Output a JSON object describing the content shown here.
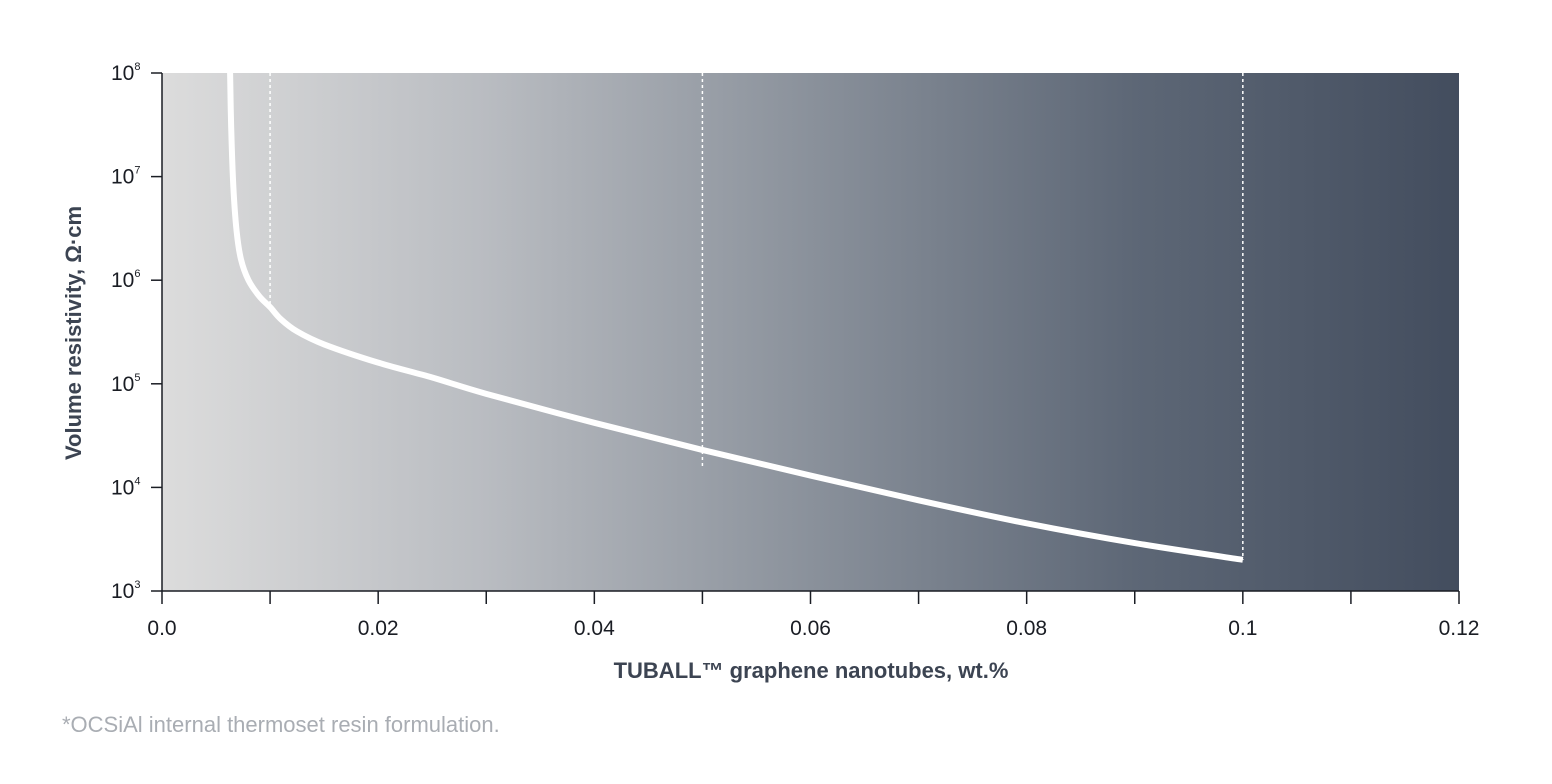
{
  "chart_data": {
    "type": "line",
    "xlabel": "TUBALL™ graphene nanotubes, wt.%",
    "ylabel": "Volume resistivity, Ω·cm",
    "x_scale": "linear",
    "y_scale": "log",
    "xlim": [
      0.0,
      0.12
    ],
    "ylim": [
      1000,
      100000000
    ],
    "x_ticks": [
      0.0,
      0.01,
      0.02,
      0.03,
      0.04,
      0.05,
      0.06,
      0.07,
      0.08,
      0.09,
      0.1,
      0.11,
      0.12
    ],
    "x_tick_labels": [
      {
        "value": 0.0,
        "label": "0.0"
      },
      {
        "value": 0.02,
        "label": "0.02"
      },
      {
        "value": 0.04,
        "label": "0.04"
      },
      {
        "value": 0.06,
        "label": "0.06"
      },
      {
        "value": 0.08,
        "label": "0.08"
      },
      {
        "value": 0.1,
        "label": "0.1"
      },
      {
        "value": 0.12,
        "label": "0.12"
      }
    ],
    "y_ticks": [
      {
        "value": 1000,
        "base": "10",
        "exp": "3"
      },
      {
        "value": 10000,
        "base": "10",
        "exp": "4"
      },
      {
        "value": 100000,
        "base": "10",
        "exp": "5"
      },
      {
        "value": 1000000,
        "base": "10",
        "exp": "6"
      },
      {
        "value": 10000000,
        "base": "10",
        "exp": "7"
      },
      {
        "value": 100000000,
        "base": "10",
        "exp": "8"
      }
    ],
    "series": [
      {
        "color": "#ffffff",
        "points": [
          [
            0.0063,
            100000000
          ],
          [
            0.0064,
            30000000
          ],
          [
            0.0066,
            8000000
          ],
          [
            0.0069,
            3000000
          ],
          [
            0.0073,
            1600000
          ],
          [
            0.008,
            1000000
          ],
          [
            0.009,
            700000
          ],
          [
            0.01,
            550000
          ],
          [
            0.011,
            420000
          ],
          [
            0.0125,
            320000
          ],
          [
            0.015,
            240000
          ],
          [
            0.02,
            160000
          ],
          [
            0.025,
            115000
          ],
          [
            0.03,
            80000
          ],
          [
            0.04,
            42000
          ],
          [
            0.05,
            23000
          ],
          [
            0.06,
            13000
          ],
          [
            0.07,
            7500
          ],
          [
            0.08,
            4500
          ],
          [
            0.09,
            2900
          ],
          [
            0.1,
            2000
          ]
        ]
      }
    ],
    "reference_lines_x": [
      0.01,
      0.05,
      0.1
    ],
    "background_gradient": [
      "#dcdcdc",
      "#b9bcc1",
      "#8a919b",
      "#5d6776",
      "#434d5e"
    ],
    "grid": false,
    "legend": "none"
  },
  "footnote": "*OCSiAl internal thermoset resin formulation."
}
